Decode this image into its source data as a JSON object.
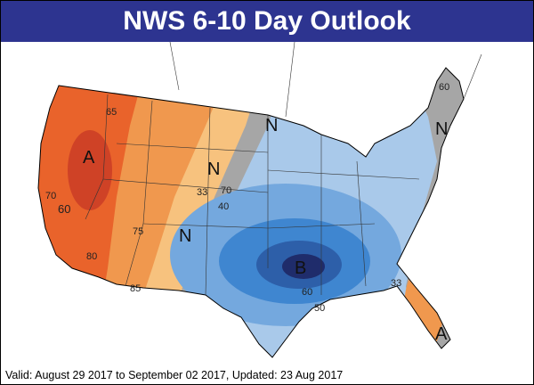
{
  "header": {
    "title": "NWS 6-10 Day Outlook"
  },
  "map": {
    "labels": [
      "A",
      "65",
      "70",
      "60",
      "80",
      "75",
      "85",
      "N",
      "N",
      "N",
      "33",
      "70",
      "40",
      "B",
      "60",
      "50",
      "33",
      "A",
      "N",
      "60"
    ]
  },
  "footer": {
    "validity": "Valid: August 29 2017 to September 02 2017, Updated: 23 Aug 2017"
  }
}
